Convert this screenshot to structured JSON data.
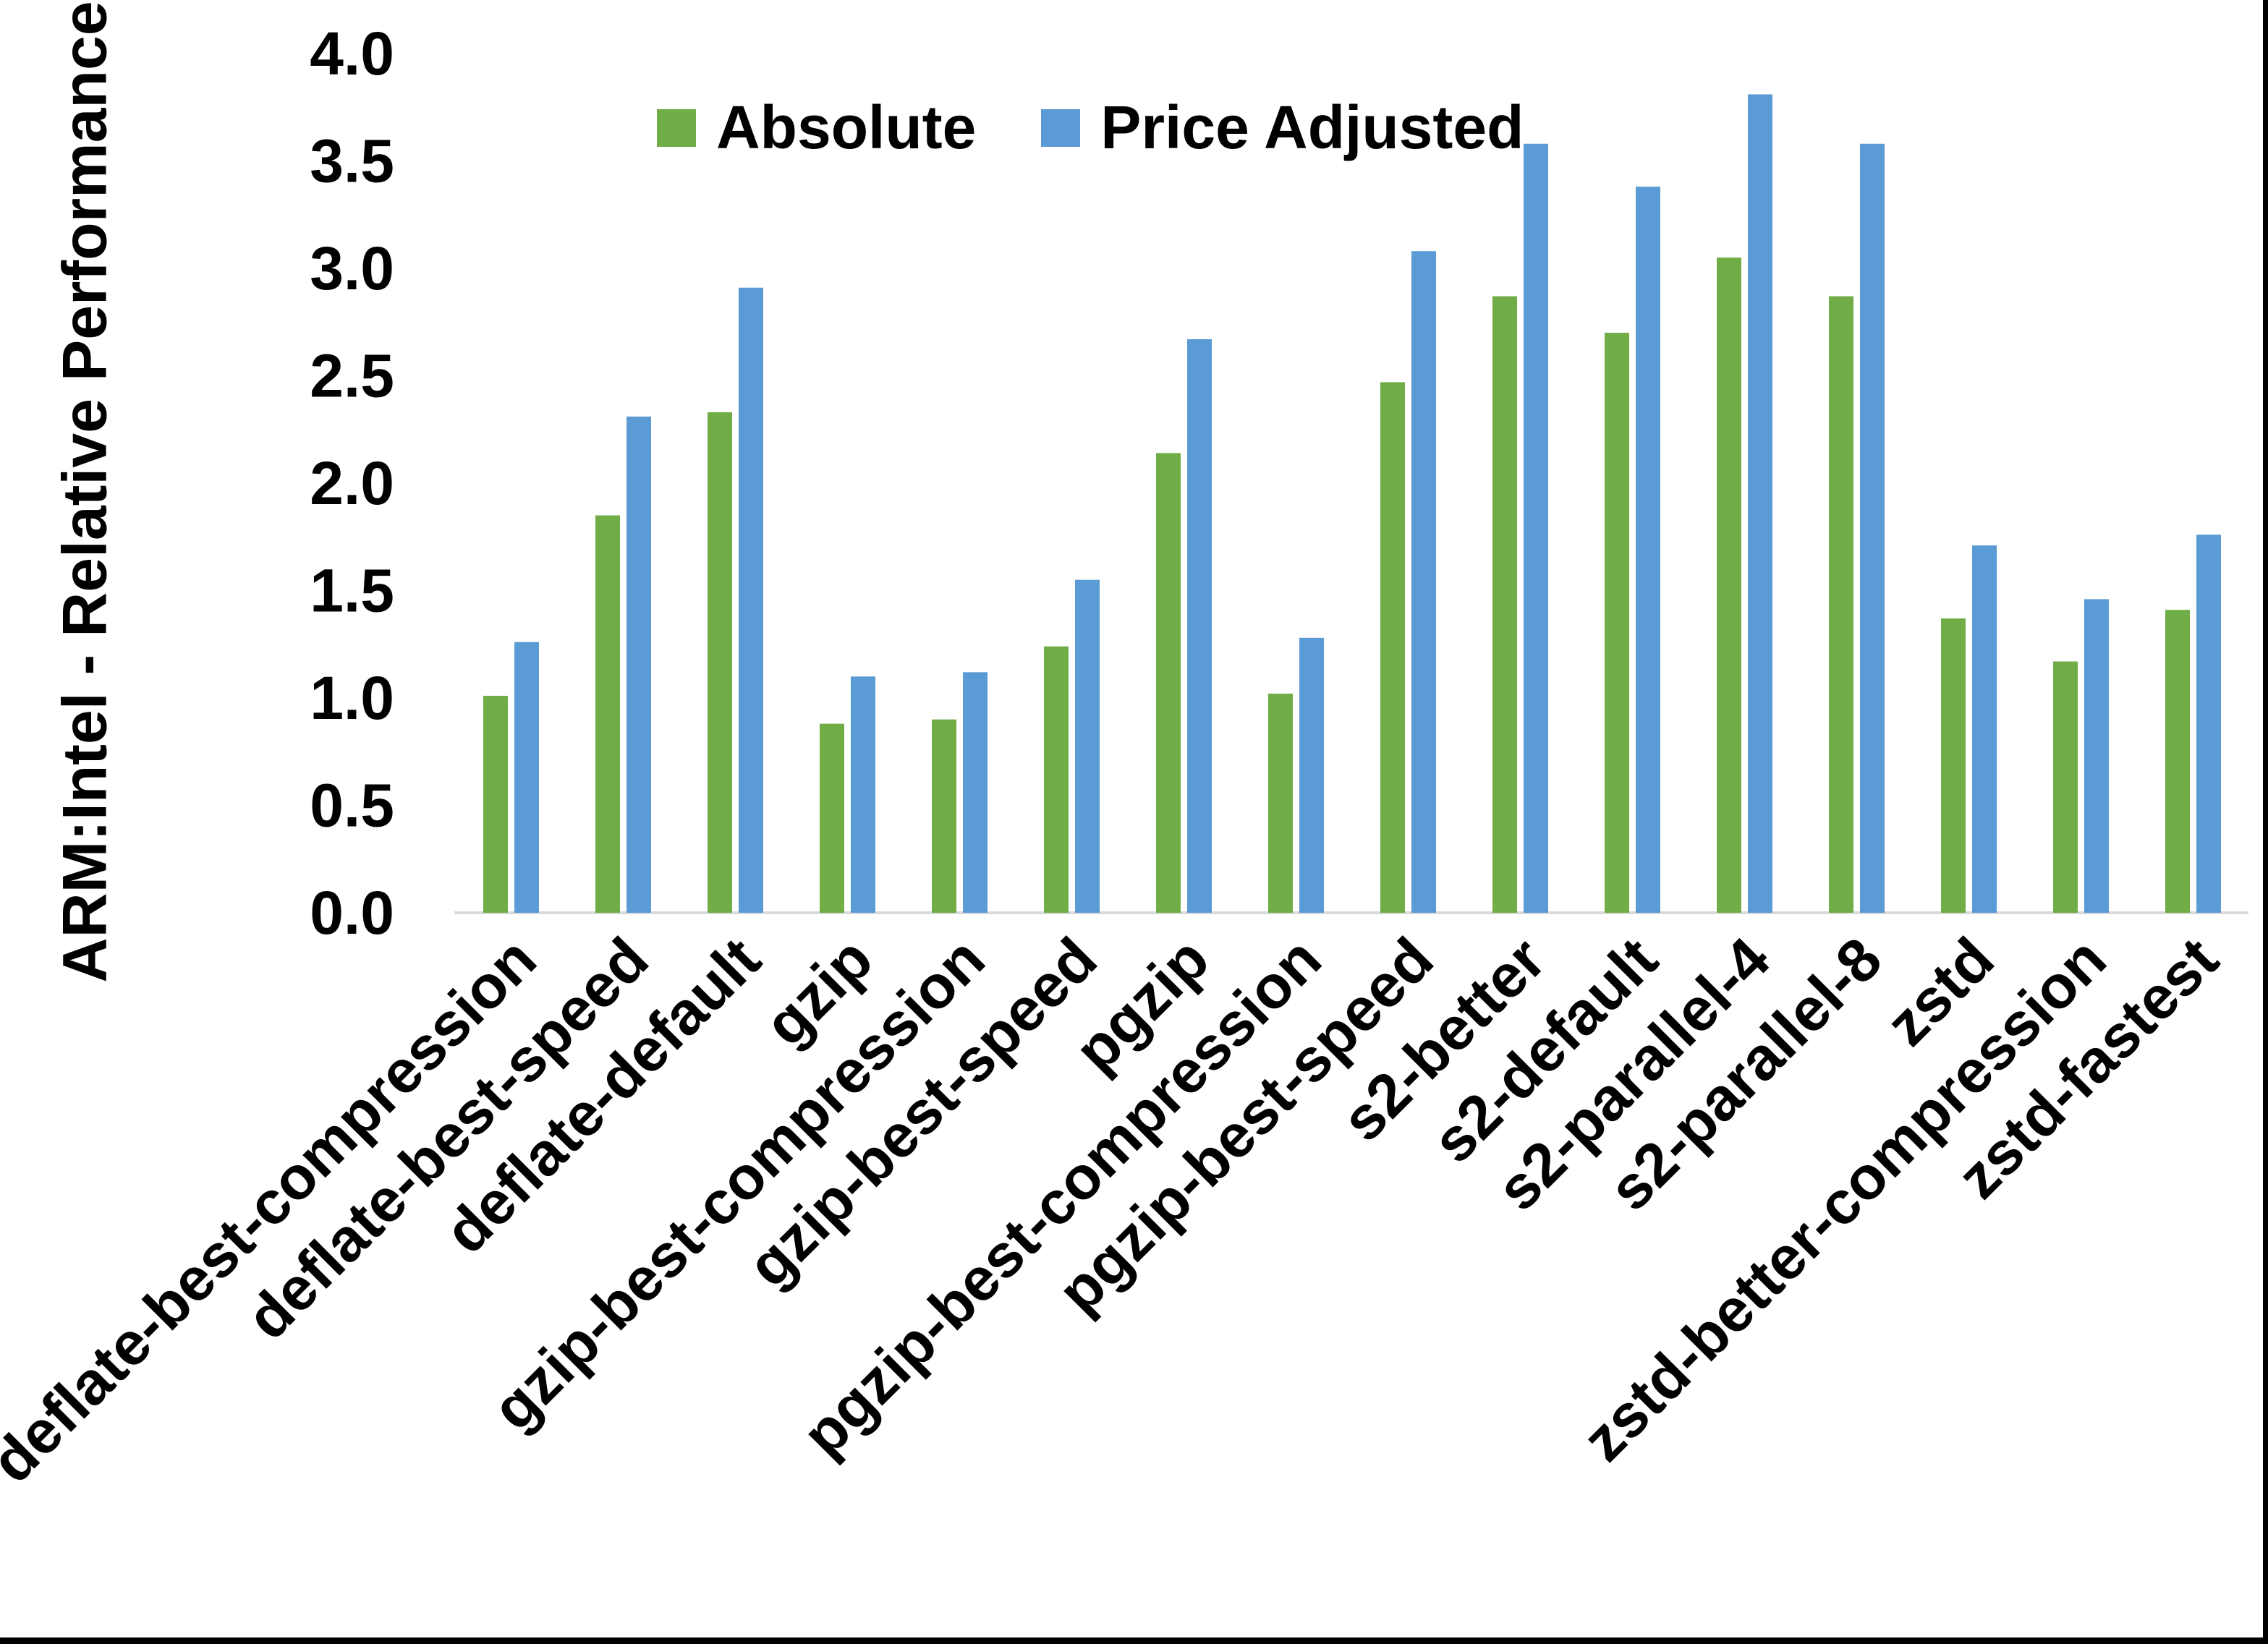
{
  "page": {
    "background_color": "#FFFFFF",
    "frame_color": "#000000"
  },
  "y_axis": {
    "title": "ARM:Intel - Relative Performance",
    "tick_labels": [
      "0.0",
      "0.5",
      "1.0",
      "1.5",
      "2.0",
      "2.5",
      "3.0",
      "3.5",
      "4.0"
    ]
  },
  "legend": {
    "items": [
      {
        "label": "Absolute",
        "color": "#70AD47"
      },
      {
        "label": "Price Adjusted",
        "color": "#5B9BD5"
      }
    ]
  },
  "chart_data": {
    "type": "bar",
    "title": "",
    "xlabel": "",
    "ylabel": "ARM:Intel - Relative Performance",
    "ylim": [
      0.0,
      4.0
    ],
    "ytick_step": 0.5,
    "grid": false,
    "legend_position": "top-center",
    "axis_line_color": "#D9D9D9",
    "categories": [
      "deflate-best-compression",
      "deflate-best-speed",
      "deflate-default",
      "gzip",
      "gzip-best-compression",
      "gzip-best-speed",
      "pgzip",
      "pgzip-best-compression",
      "pgzip-best-speed",
      "s2-better",
      "s2-default",
      "s2-parallel-4",
      "s2-parallel-8",
      "zstd",
      "zstd-better-compression",
      "zstd-fastest"
    ],
    "series": [
      {
        "name": "Absolute",
        "color": "#70AD47",
        "values": [
          1.01,
          1.85,
          2.33,
          0.88,
          0.9,
          1.24,
          2.14,
          1.02,
          2.47,
          2.87,
          2.7,
          3.05,
          2.87,
          1.37,
          1.17,
          1.41
        ]
      },
      {
        "name": "Price Adjusted",
        "color": "#5B9BD5",
        "values": [
          1.26,
          2.31,
          2.91,
          1.1,
          1.12,
          1.55,
          2.67,
          1.28,
          3.08,
          3.58,
          3.38,
          3.81,
          3.58,
          1.71,
          1.46,
          1.76
        ]
      }
    ]
  }
}
